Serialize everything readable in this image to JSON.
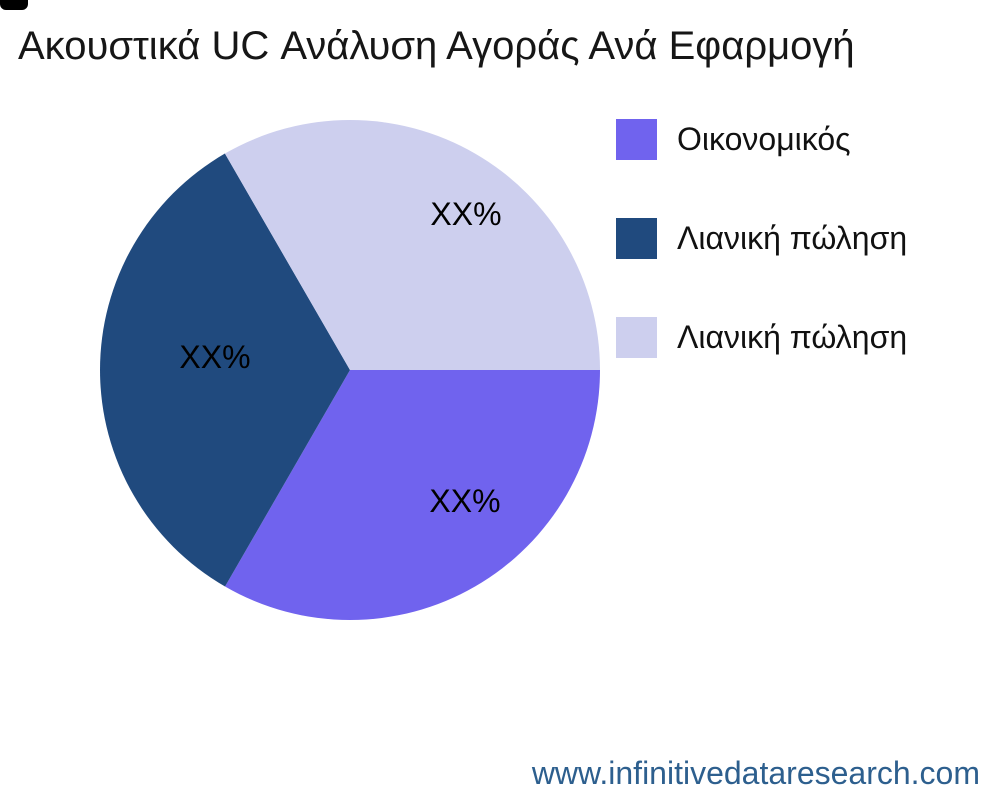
{
  "page": {
    "title": "Ακουστικά UC Ανάλυση Αγοράς Ανά Εφαρμογή",
    "footer_url": "www.infinitivedataresearch.com"
  },
  "chart_data": {
    "type": "pie",
    "title": "Ακουστικά UC Ανάλυση Αγοράς Ανά Εφαρμογή",
    "legend_position": "right",
    "start_angle_deg": 0,
    "direction": "clockwise",
    "values_masked_as": "XX%",
    "segments": [
      {
        "label": "Οικονομικός",
        "display_value": "XX%",
        "value": 33.33,
        "color": "#7063ee"
      },
      {
        "label": "Λιανική πώληση",
        "display_value": "XX%",
        "value": 33.33,
        "color": "#204a7e"
      },
      {
        "label": "Λιανική πώληση",
        "display_value": "XX%",
        "value": 33.34,
        "color": "#cdcfee"
      }
    ],
    "colors": {
      "background": "#ffffff",
      "title_text": "#161616",
      "slice_label_text": "#000000",
      "legend_text": "#111111",
      "footer_text": "#2d5f8e",
      "corner_mark": "#000000"
    }
  }
}
